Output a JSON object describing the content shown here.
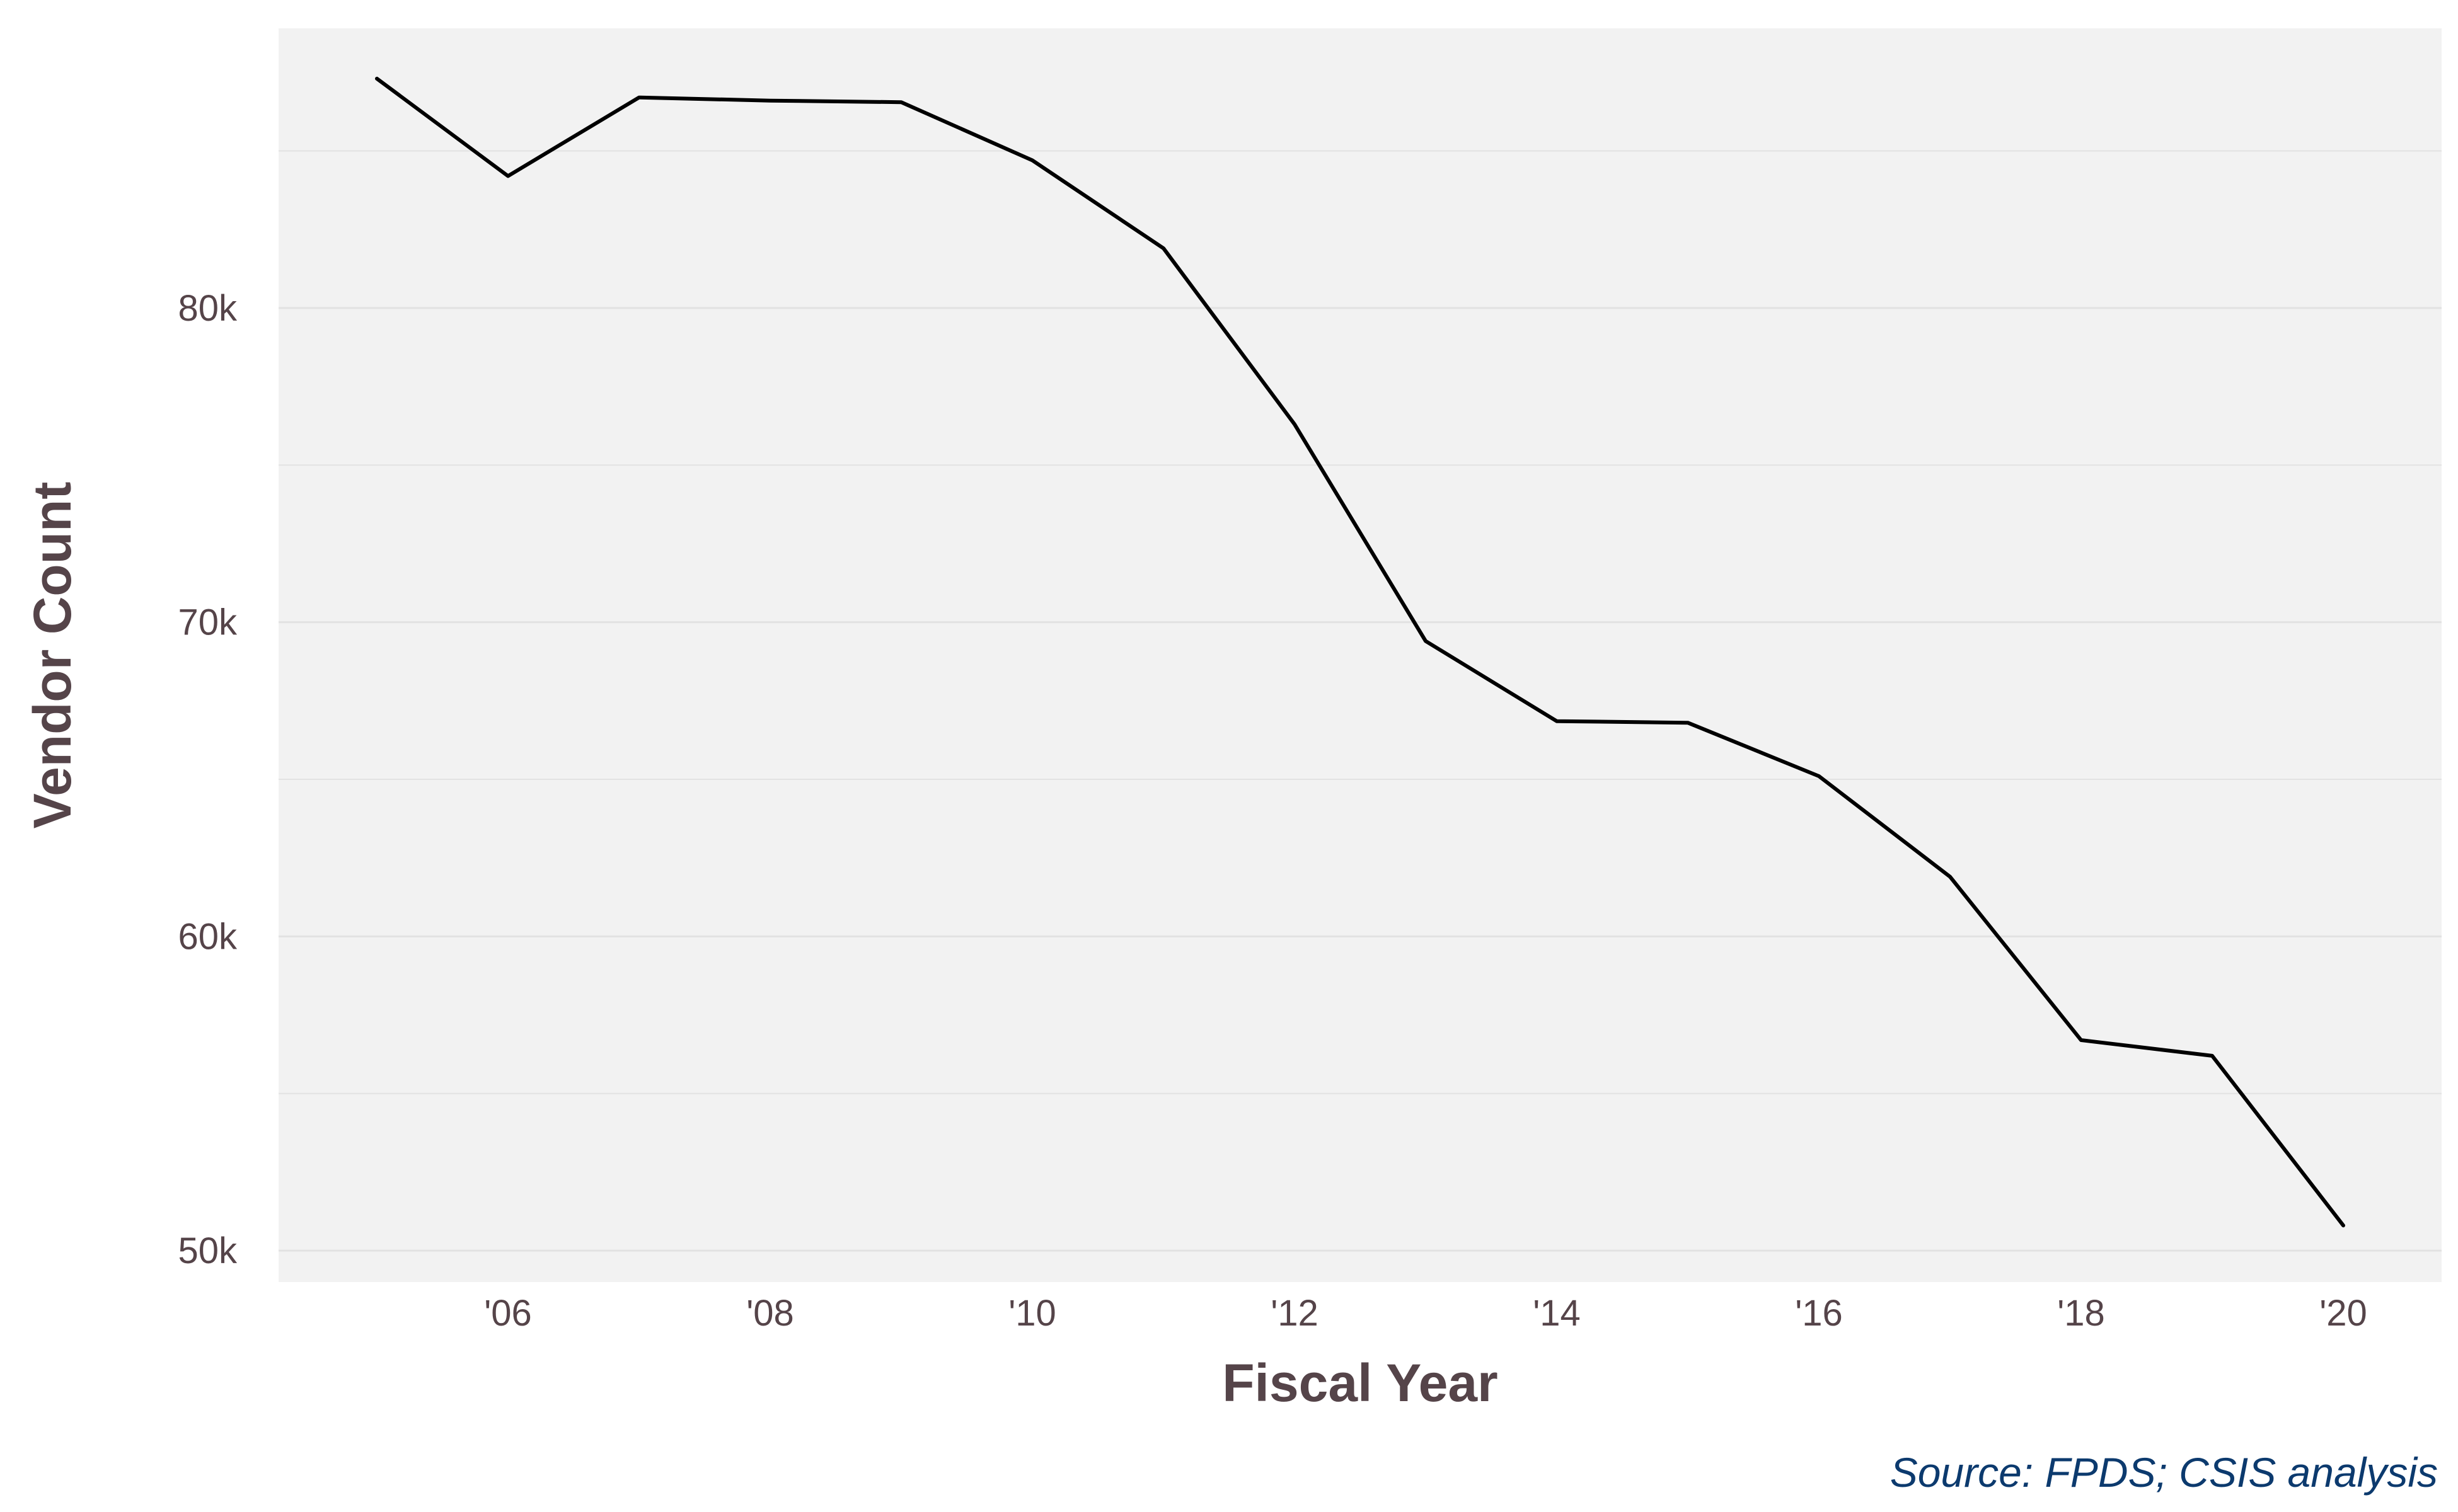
{
  "chart_data": {
    "type": "line",
    "xlabel": "Fiscal Year",
    "ylabel": "Vendor Count",
    "caption": "Source: FPDS; CSIS analysis",
    "x_tick_values": [
      2006,
      2008,
      2010,
      2012,
      2014,
      2016,
      2018,
      2020
    ],
    "x_tick_labels": [
      "'06",
      "'08",
      "'10",
      "'12",
      "'14",
      "'16",
      "'18",
      "'20"
    ],
    "y_tick_values": [
      50000,
      60000,
      70000,
      80000
    ],
    "y_tick_labels": [
      "50k",
      "60k",
      "70k",
      "80k"
    ],
    "xlim": [
      2004.25,
      2020.75
    ],
    "ylim": [
      49000,
      88900
    ],
    "grid": true,
    "series": [
      {
        "color": "#000000",
        "x": [
          2005,
          2006,
          2007,
          2008,
          2009,
          2010,
          2011,
          2012,
          2013,
          2014,
          2015,
          2016,
          2017,
          2018,
          2019,
          2020
        ],
        "values": [
          87300,
          84200,
          86700,
          86600,
          86550,
          84700,
          81900,
          76300,
          69400,
          66850,
          66800,
          65100,
          61900,
          56700,
          56200,
          50800
        ]
      }
    ],
    "colors": {
      "panel_background": "#f2f2f2",
      "gridline": "#e2e2e2",
      "text": "#554449",
      "caption": "#0c3a6e"
    }
  }
}
